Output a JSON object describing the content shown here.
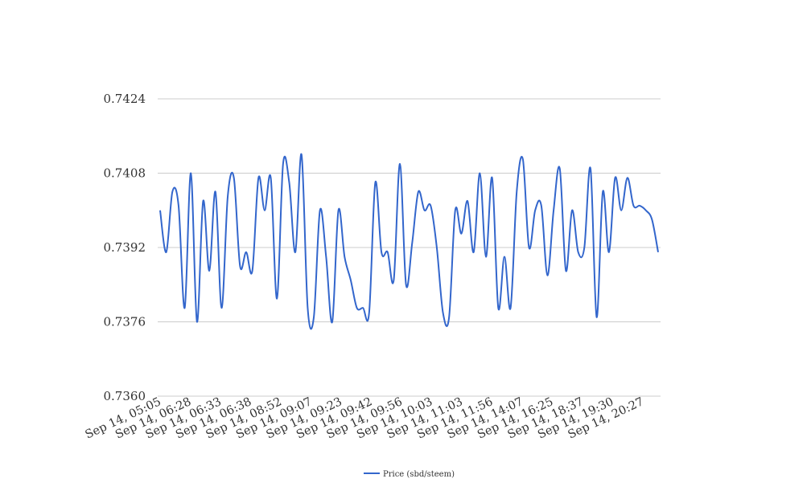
{
  "chart_data": {
    "type": "line",
    "title": "",
    "xlabel": "",
    "ylabel": "",
    "ylim": [
      0.736,
      0.7424
    ],
    "yticks": [
      "0.7424",
      "0.7408",
      "0.7392",
      "0.7376",
      "0.7360"
    ],
    "xticks": [
      "Sep 14, 05:05",
      "Sep 14, 06:28",
      "Sep 14, 06:33",
      "Sep 14, 06:38",
      "Sep 14, 08:52",
      "Sep 14, 09:07",
      "Sep 14, 09:23",
      "Sep 14, 09:42",
      "Sep 14, 09:56",
      "Sep 14, 10:03",
      "Sep 14, 11:03",
      "Sep 14, 11:56",
      "Sep 14, 14:07",
      "Sep 14, 16:25",
      "Sep 14, 18:37",
      "Sep 14, 19:30",
      "Sep 14, 20:27"
    ],
    "grid": true,
    "legend": "bottom-center",
    "series": [
      {
        "name": "Price (sbd/steem)",
        "color": "#3366cc",
        "values": [
          0.74,
          0.7391,
          0.7404,
          0.7401,
          0.7379,
          0.7408,
          0.7376,
          0.7402,
          0.7387,
          0.7404,
          0.7379,
          0.7403,
          0.7407,
          0.7388,
          0.7391,
          0.7387,
          0.7407,
          0.74,
          0.7407,
          0.7381,
          0.741,
          0.7406,
          0.7391,
          0.7412,
          0.7379,
          0.7377,
          0.74,
          0.739,
          0.7376,
          0.74,
          0.739,
          0.7385,
          0.7379,
          0.7379,
          0.7378,
          0.7406,
          0.7391,
          0.7391,
          0.7385,
          0.741,
          0.7384,
          0.7393,
          0.7404,
          0.74,
          0.7401,
          0.7392,
          0.7378,
          0.7377,
          0.74,
          0.7395,
          0.7402,
          0.7391,
          0.7408,
          0.739,
          0.7407,
          0.7379,
          0.739,
          0.7379,
          0.7404,
          0.7411,
          0.7392,
          0.74,
          0.7401,
          0.7386,
          0.74,
          0.7409,
          0.7387,
          0.74,
          0.7391,
          0.7392,
          0.7409,
          0.7377,
          0.7404,
          0.7391,
          0.7407,
          0.74,
          0.7407,
          0.7401,
          0.7401,
          0.74,
          0.7398,
          0.7391
        ]
      }
    ]
  }
}
